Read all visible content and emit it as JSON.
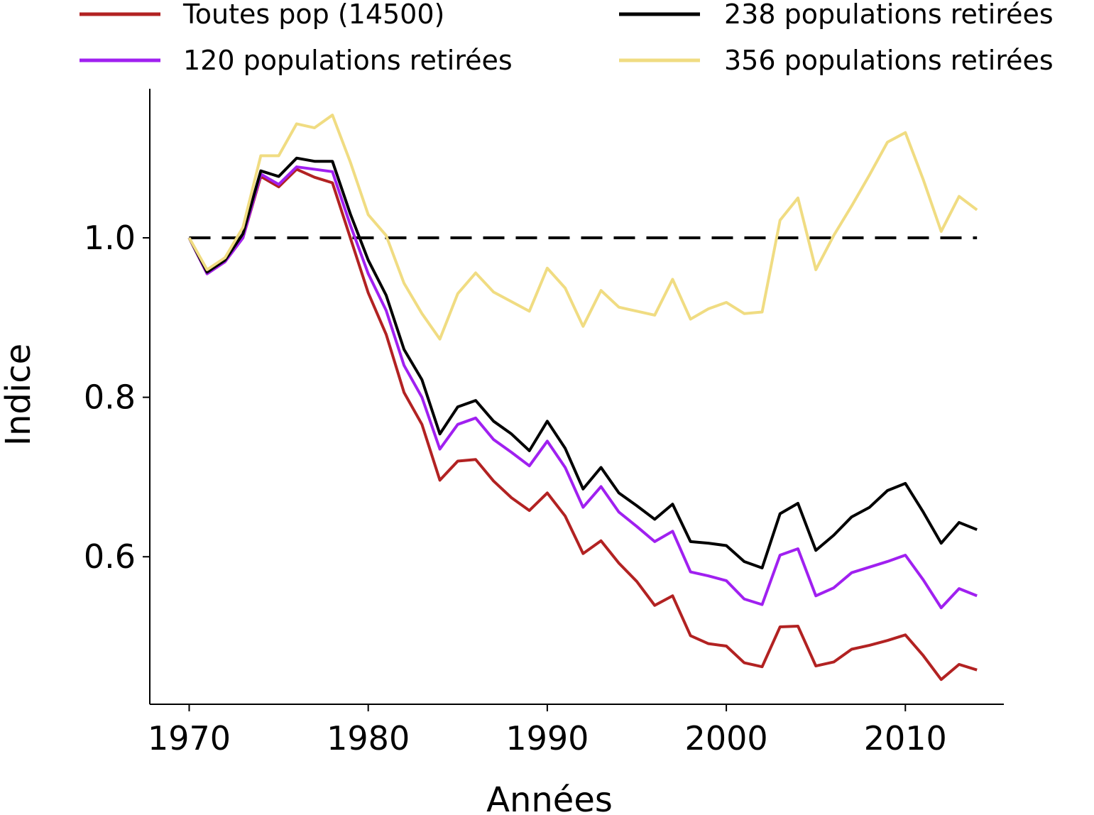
{
  "chart_data": {
    "type": "line",
    "title": "",
    "xlabel": "Années",
    "ylabel": "Indice",
    "xlim": [
      1967.8,
      2015.5
    ],
    "ylim": [
      0.415,
      1.187
    ],
    "x_ticks": [
      1970,
      1980,
      1990,
      2000,
      2010
    ],
    "x_tick_labels": [
      "1970",
      "1980",
      "1990",
      "2000",
      "2010"
    ],
    "y_ticks": [
      0.6,
      0.8,
      1.0
    ],
    "y_tick_labels": [
      "0.6",
      "0.8",
      "1.0"
    ],
    "grid": false,
    "legend_placement": "top",
    "reference_line": {
      "y": 1.0,
      "style": "dashed",
      "color": "#000000"
    },
    "x": [
      1970,
      1971,
      1972,
      1973,
      1974,
      1975,
      1976,
      1977,
      1978,
      1979,
      1980,
      1981,
      1982,
      1983,
      1984,
      1985,
      1986,
      1987,
      1988,
      1989,
      1990,
      1991,
      1992,
      1993,
      1994,
      1995,
      1996,
      1997,
      1998,
      1999,
      2000,
      2001,
      2002,
      2003,
      2004,
      2005,
      2006,
      2007,
      2008,
      2009,
      2010,
      2011,
      2012,
      2013,
      2014
    ],
    "series": [
      {
        "name": "Toutes pop (14500)",
        "color": "#b22222",
        "values": [
          1.0,
          0.955,
          0.97,
          1.0,
          1.077,
          1.064,
          1.086,
          1.076,
          1.069,
          1.0,
          0.931,
          0.879,
          0.806,
          0.766,
          0.696,
          0.72,
          0.722,
          0.695,
          0.674,
          0.658,
          0.68,
          0.651,
          0.604,
          0.62,
          0.592,
          0.569,
          0.539,
          0.551,
          0.501,
          0.491,
          0.488,
          0.467,
          0.462,
          0.512,
          0.513,
          0.463,
          0.468,
          0.484,
          0.489,
          0.495,
          0.502,
          0.476,
          0.446,
          0.465,
          0.458
        ]
      },
      {
        "name": "120 populations retirées",
        "color": "#a020f0",
        "values": [
          1.0,
          0.955,
          0.97,
          1.0,
          1.08,
          1.067,
          1.089,
          1.086,
          1.083,
          1.016,
          0.955,
          0.909,
          0.84,
          0.8,
          0.735,
          0.766,
          0.774,
          0.747,
          0.731,
          0.714,
          0.745,
          0.712,
          0.662,
          0.688,
          0.656,
          0.638,
          0.619,
          0.632,
          0.581,
          0.576,
          0.57,
          0.547,
          0.54,
          0.602,
          0.61,
          0.551,
          0.561,
          0.58,
          0.587,
          0.594,
          0.602,
          0.571,
          0.536,
          0.56,
          0.551
        ]
      },
      {
        "name": "238 populations retirées",
        "color": "#000000",
        "values": [
          1.0,
          0.957,
          0.972,
          1.005,
          1.084,
          1.077,
          1.1,
          1.096,
          1.096,
          1.03,
          0.972,
          0.928,
          0.86,
          0.822,
          0.754,
          0.788,
          0.796,
          0.77,
          0.754,
          0.733,
          0.77,
          0.736,
          0.685,
          0.712,
          0.68,
          0.664,
          0.647,
          0.666,
          0.619,
          0.617,
          0.614,
          0.594,
          0.586,
          0.654,
          0.667,
          0.608,
          0.627,
          0.65,
          0.662,
          0.683,
          0.692,
          0.656,
          0.617,
          0.643,
          0.634
        ]
      },
      {
        "name": "356 populations retirées",
        "color": "#f0dc82",
        "values": [
          1.0,
          0.96,
          0.975,
          1.013,
          1.103,
          1.103,
          1.143,
          1.138,
          1.154,
          1.095,
          1.029,
          1.003,
          0.943,
          0.905,
          0.873,
          0.93,
          0.956,
          0.932,
          0.92,
          0.908,
          0.962,
          0.937,
          0.889,
          0.934,
          0.913,
          0.908,
          0.903,
          0.948,
          0.898,
          0.911,
          0.919,
          0.905,
          0.907,
          1.022,
          1.05,
          0.96,
          1.003,
          1.04,
          1.079,
          1.12,
          1.132,
          1.073,
          1.008,
          1.052,
          1.035
        ]
      }
    ]
  }
}
